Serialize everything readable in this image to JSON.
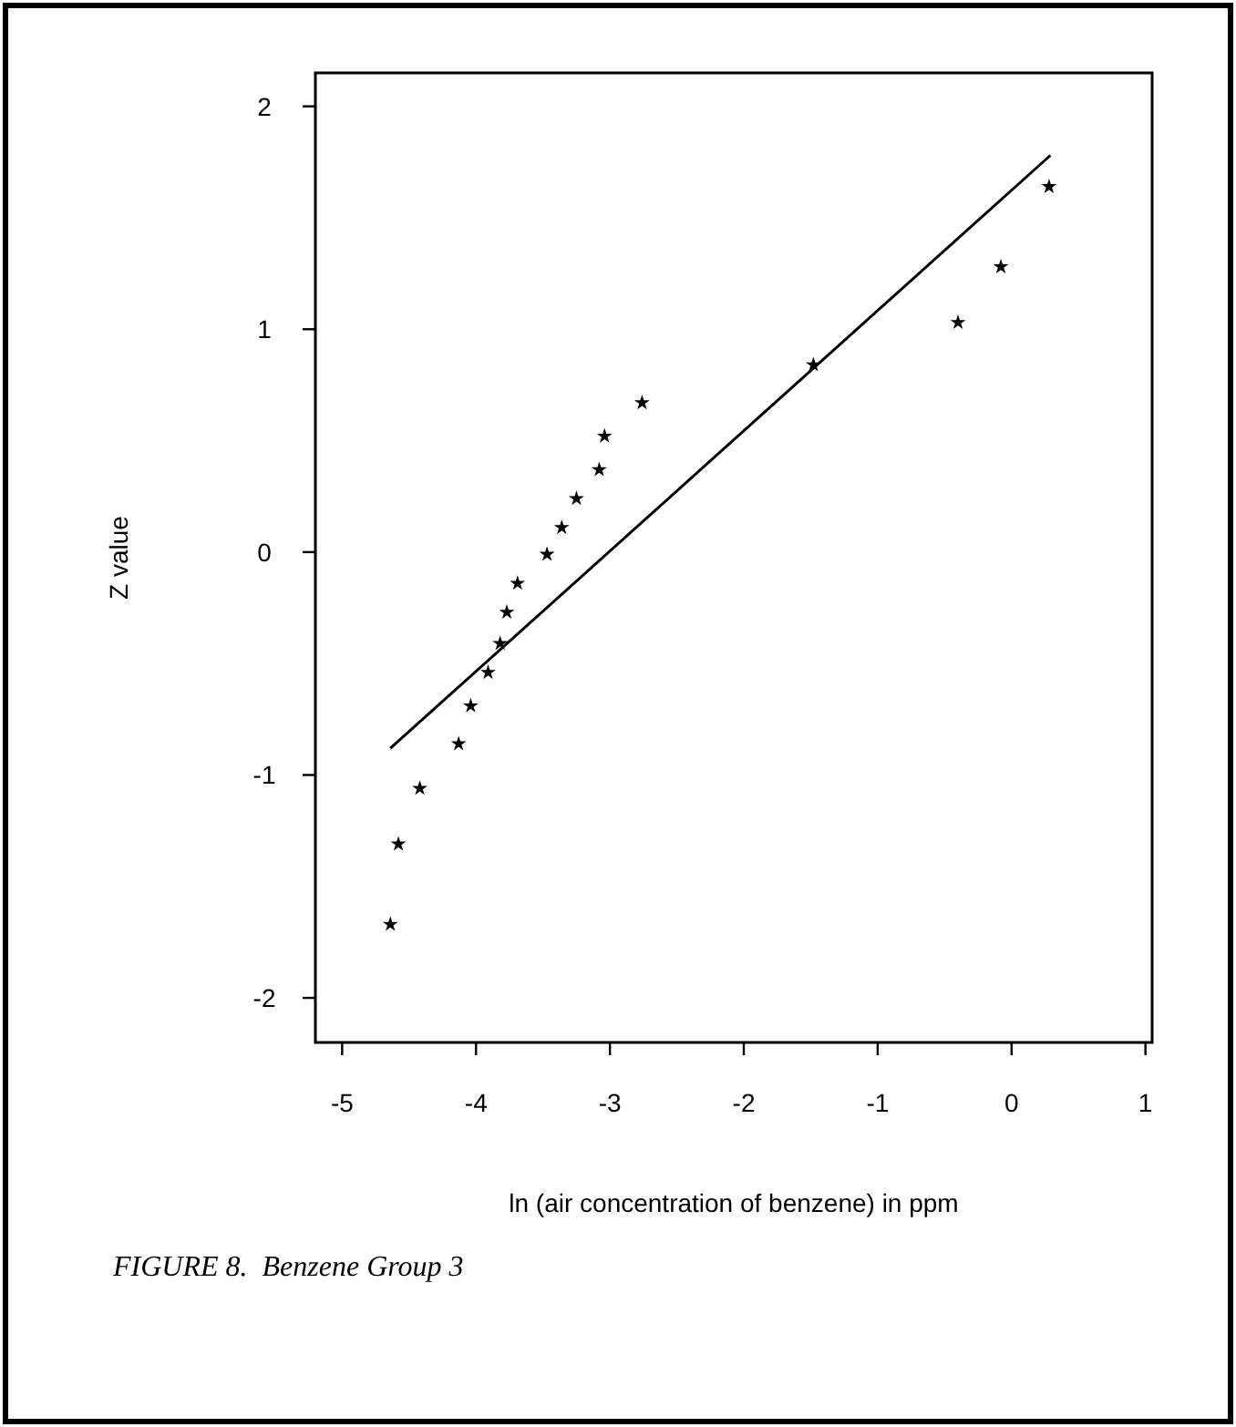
{
  "chart_data": {
    "type": "scatter",
    "xlabel": "ln (air concentration of benzene) in ppm",
    "ylabel": "Z value",
    "annotations": [
      "FIGURE 8.  Benzene Group 3"
    ],
    "xlim": [
      -5.2,
      1.05
    ],
    "ylim": [
      -2.2,
      2.15
    ],
    "xticks": [
      -5,
      -4,
      -3,
      -2,
      -1,
      0,
      1
    ],
    "yticks": [
      -2,
      -1,
      0,
      1,
      2
    ],
    "grid": false,
    "series": [
      {
        "color": "#000000",
        "marker": "star",
        "x": [
          -4.64,
          -4.58,
          -4.42,
          -4.13,
          -4.04,
          -3.91,
          -3.82,
          -3.77,
          -3.69,
          -3.47,
          -3.36,
          -3.25,
          -3.08,
          -3.04,
          -2.76,
          -1.48,
          -0.4,
          -0.08,
          0.28
        ],
        "values": [
          -1.67,
          -1.31,
          -1.06,
          -0.86,
          -0.69,
          -0.54,
          -0.41,
          -0.27,
          -0.14,
          -0.01,
          0.11,
          0.24,
          0.37,
          0.52,
          0.67,
          0.84,
          1.03,
          1.28,
          1.64
        ]
      },
      {
        "type": "line",
        "color": "#000000",
        "line_style": "solid",
        "x": [
          -4.64,
          0.29
        ],
        "values": [
          -0.88,
          1.78
        ]
      }
    ]
  }
}
